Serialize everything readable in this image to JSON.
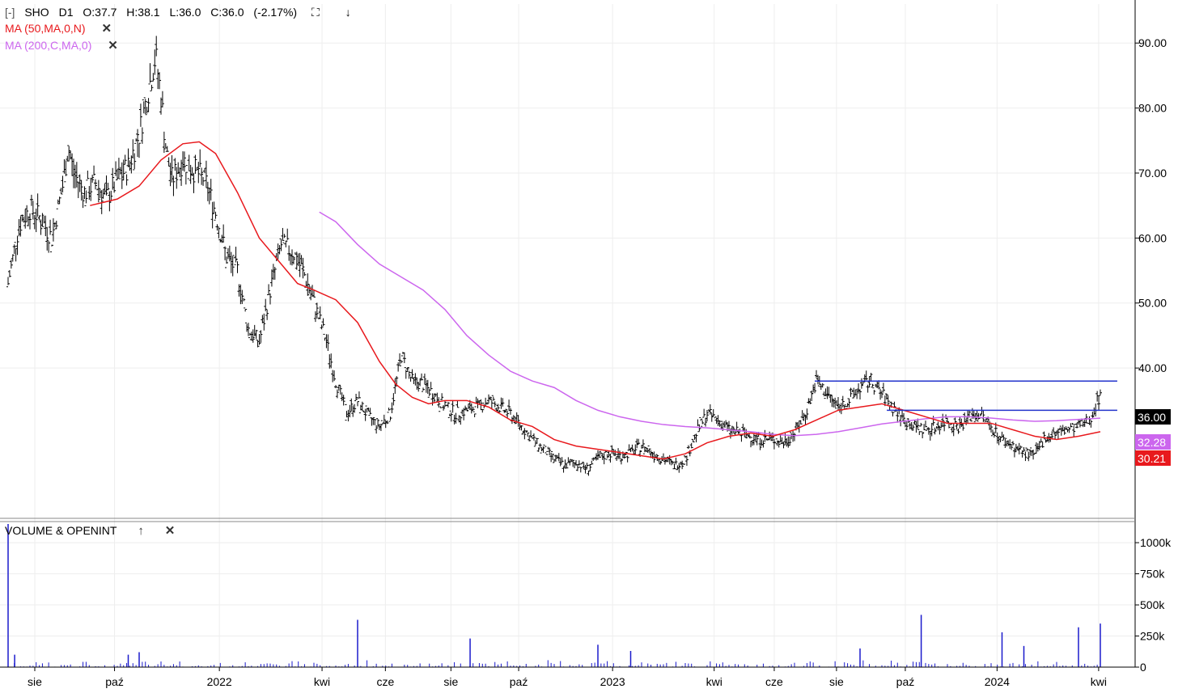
{
  "header": {
    "collapse": "[-]",
    "symbol": "SHO",
    "interval": "D1",
    "open": "O:37.7",
    "high": "H:38.1",
    "low": "L:36.0",
    "close": "C:36.0",
    "change": "(-2.17%)",
    "expand_icon": "expand-icon",
    "download_icon": "download-icon"
  },
  "indicators": {
    "ma50": {
      "label": "MA (50,MA,0,N)",
      "color": "#e8191d",
      "close": "✕"
    },
    "ma200": {
      "label": "MA (200,C,MA,0)",
      "color": "#cc66ee",
      "close": "✕"
    }
  },
  "volume_panel": {
    "label": "VOLUME & OPENINT",
    "up": "↑",
    "close": "✕"
  },
  "tags": {
    "last": {
      "text": "36.00",
      "color": "#000000"
    },
    "ma200": {
      "text": "32.28",
      "color": "#cc66ee"
    },
    "ma50": {
      "text": "30.21",
      "color": "#e8191d"
    }
  },
  "chart_data": {
    "type": "line",
    "price_axis": {
      "ticks": [
        "90.00",
        "80.00",
        "70.00",
        "60.00",
        "50.00",
        "40.00"
      ],
      "values": [
        90,
        80,
        70,
        60,
        50,
        40
      ],
      "ylim": [
        17,
        96
      ]
    },
    "volume_axis": {
      "ticks": [
        "1000k",
        "750k",
        "500k",
        "250k",
        "0"
      ],
      "values": [
        1000000,
        750000,
        500000,
        250000,
        0
      ],
      "ylim": [
        0,
        1150000
      ]
    },
    "x_ticks": [
      "sie",
      "paź",
      "2022",
      "kwi",
      "cze",
      "sie",
      "paź",
      "2023",
      "kwi",
      "cze",
      "sie",
      "paź",
      "2024",
      "kwi"
    ],
    "x_tick_pos": [
      0.0,
      0.073,
      0.169,
      0.263,
      0.321,
      0.381,
      0.443,
      0.529,
      0.622,
      0.677,
      0.734,
      0.797,
      0.881,
      0.974
    ],
    "price_close": [
      [
        0.0,
        53.0
      ],
      [
        0.01,
        62.0
      ],
      [
        0.02,
        64.5
      ],
      [
        0.03,
        63.0
      ],
      [
        0.04,
        60.0
      ],
      [
        0.05,
        68.0
      ],
      [
        0.055,
        74.0
      ],
      [
        0.06,
        70.0
      ],
      [
        0.07,
        67.0
      ],
      [
        0.08,
        68.5
      ],
      [
        0.09,
        66.0
      ],
      [
        0.1,
        69.0
      ],
      [
        0.11,
        71.0
      ],
      [
        0.12,
        76.0
      ],
      [
        0.13,
        84.0
      ],
      [
        0.135,
        88.0
      ],
      [
        0.14,
        82.0
      ],
      [
        0.145,
        73.0
      ],
      [
        0.15,
        69.0
      ],
      [
        0.16,
        72.0
      ],
      [
        0.17,
        70.5
      ],
      [
        0.18,
        69.0
      ],
      [
        0.19,
        64.0
      ],
      [
        0.2,
        57.0
      ],
      [
        0.21,
        55.0
      ],
      [
        0.22,
        46.0
      ],
      [
        0.23,
        44.0
      ],
      [
        0.24,
        52.0
      ],
      [
        0.25,
        59.0
      ],
      [
        0.26,
        58.0
      ],
      [
        0.27,
        55.0
      ],
      [
        0.28,
        50.0
      ],
      [
        0.29,
        45.0
      ],
      [
        0.3,
        38.0
      ],
      [
        0.31,
        33.0
      ],
      [
        0.32,
        35.0
      ],
      [
        0.33,
        32.5
      ],
      [
        0.34,
        31.0
      ],
      [
        0.35,
        33.0
      ],
      [
        0.36,
        42.0
      ],
      [
        0.37,
        38.0
      ],
      [
        0.38,
        37.5
      ],
      [
        0.39,
        36.0
      ],
      [
        0.4,
        34.0
      ],
      [
        0.41,
        33.0
      ],
      [
        0.42,
        33.5
      ],
      [
        0.43,
        34.0
      ],
      [
        0.44,
        35.0
      ],
      [
        0.45,
        34.0
      ],
      [
        0.46,
        33.0
      ],
      [
        0.47,
        31.0
      ],
      [
        0.48,
        29.0
      ],
      [
        0.49,
        27.5
      ],
      [
        0.5,
        26.0
      ],
      [
        0.51,
        25.0
      ],
      [
        0.52,
        25.5
      ],
      [
        0.53,
        24.5
      ],
      [
        0.54,
        26.0
      ],
      [
        0.55,
        27.0
      ],
      [
        0.56,
        26.5
      ],
      [
        0.57,
        27.0
      ],
      [
        0.58,
        28.0
      ],
      [
        0.59,
        27.0
      ],
      [
        0.6,
        26.0
      ],
      [
        0.61,
        25.0
      ],
      [
        0.62,
        26.0
      ],
      [
        0.63,
        30.0
      ],
      [
        0.64,
        33.0
      ],
      [
        0.65,
        32.0
      ],
      [
        0.66,
        30.5
      ],
      [
        0.67,
        30.0
      ],
      [
        0.68,
        29.5
      ],
      [
        0.69,
        29.0
      ],
      [
        0.7,
        29.0
      ],
      [
        0.71,
        28.5
      ],
      [
        0.72,
        30.0
      ],
      [
        0.73,
        33.0
      ],
      [
        0.74,
        38.0
      ],
      [
        0.75,
        36.0
      ],
      [
        0.76,
        34.0
      ],
      [
        0.77,
        35.0
      ],
      [
        0.78,
        37.0
      ],
      [
        0.79,
        38.0
      ],
      [
        0.8,
        36.0
      ],
      [
        0.81,
        34.0
      ],
      [
        0.82,
        32.0
      ],
      [
        0.83,
        31.0
      ],
      [
        0.84,
        30.5
      ],
      [
        0.85,
        31.0
      ],
      [
        0.86,
        32.0
      ],
      [
        0.87,
        31.0
      ],
      [
        0.88,
        32.5
      ],
      [
        0.89,
        33.0
      ],
      [
        0.9,
        31.0
      ],
      [
        0.91,
        29.0
      ],
      [
        0.92,
        28.0
      ],
      [
        0.93,
        27.0
      ],
      [
        0.94,
        26.5
      ],
      [
        0.95,
        29.5
      ],
      [
        0.96,
        30.0
      ],
      [
        0.97,
        30.5
      ],
      [
        0.98,
        31.0
      ],
      [
        0.99,
        32.0
      ],
      [
        1.0,
        36.0
      ]
    ],
    "ma50": [
      [
        0.075,
        65.0
      ],
      [
        0.1,
        66.0
      ],
      [
        0.12,
        68.0
      ],
      [
        0.14,
        72.0
      ],
      [
        0.16,
        74.5
      ],
      [
        0.175,
        74.8
      ],
      [
        0.19,
        73.0
      ],
      [
        0.21,
        67.0
      ],
      [
        0.23,
        60.0
      ],
      [
        0.25,
        56.0
      ],
      [
        0.265,
        53.0
      ],
      [
        0.28,
        52.0
      ],
      [
        0.3,
        50.5
      ],
      [
        0.32,
        47.0
      ],
      [
        0.34,
        41.0
      ],
      [
        0.355,
        37.5
      ],
      [
        0.37,
        35.5
      ],
      [
        0.385,
        34.5
      ],
      [
        0.4,
        35.0
      ],
      [
        0.42,
        35.0
      ],
      [
        0.44,
        34.0
      ],
      [
        0.46,
        32.0
      ],
      [
        0.48,
        31.0
      ],
      [
        0.5,
        29.0
      ],
      [
        0.52,
        28.0
      ],
      [
        0.54,
        27.5
      ],
      [
        0.56,
        27.0
      ],
      [
        0.58,
        26.5
      ],
      [
        0.6,
        26.0
      ],
      [
        0.62,
        26.8
      ],
      [
        0.64,
        28.5
      ],
      [
        0.66,
        29.5
      ],
      [
        0.68,
        30.0
      ],
      [
        0.7,
        29.5
      ],
      [
        0.72,
        30.5
      ],
      [
        0.74,
        32.0
      ],
      [
        0.76,
        33.5
      ],
      [
        0.78,
        34.0
      ],
      [
        0.8,
        34.5
      ],
      [
        0.82,
        33.5
      ],
      [
        0.84,
        32.5
      ],
      [
        0.86,
        31.5
      ],
      [
        0.88,
        31.5
      ],
      [
        0.9,
        31.5
      ],
      [
        0.92,
        30.5
      ],
      [
        0.94,
        29.5
      ],
      [
        0.96,
        29.0
      ],
      [
        0.98,
        29.5
      ],
      [
        1.0,
        30.2
      ]
    ],
    "ma200": [
      [
        0.285,
        64.0
      ],
      [
        0.3,
        62.5
      ],
      [
        0.32,
        59.0
      ],
      [
        0.34,
        56.0
      ],
      [
        0.36,
        54.0
      ],
      [
        0.38,
        52.0
      ],
      [
        0.4,
        49.0
      ],
      [
        0.42,
        45.0
      ],
      [
        0.44,
        42.0
      ],
      [
        0.46,
        39.5
      ],
      [
        0.48,
        38.0
      ],
      [
        0.5,
        37.0
      ],
      [
        0.52,
        35.0
      ],
      [
        0.54,
        33.5
      ],
      [
        0.56,
        32.5
      ],
      [
        0.58,
        31.8
      ],
      [
        0.6,
        31.3
      ],
      [
        0.62,
        31.0
      ],
      [
        0.64,
        30.8
      ],
      [
        0.66,
        30.5
      ],
      [
        0.68,
        30.2
      ],
      [
        0.7,
        29.8
      ],
      [
        0.72,
        29.6
      ],
      [
        0.74,
        29.8
      ],
      [
        0.76,
        30.2
      ],
      [
        0.78,
        30.8
      ],
      [
        0.8,
        31.4
      ],
      [
        0.82,
        31.8
      ],
      [
        0.84,
        32.2
      ],
      [
        0.86,
        32.5
      ],
      [
        0.88,
        32.5
      ],
      [
        0.9,
        32.3
      ],
      [
        0.92,
        32.0
      ],
      [
        0.94,
        31.8
      ],
      [
        0.96,
        31.9
      ],
      [
        0.98,
        32.1
      ],
      [
        1.0,
        32.28
      ]
    ],
    "hlines": [
      {
        "x0": 0.74,
        "x1": 1.017,
        "y": 38.0
      },
      {
        "x0": 0.806,
        "x1": 1.017,
        "y": 33.5
      }
    ],
    "volume_spikes": [
      [
        0.0,
        1150000
      ],
      [
        0.006,
        100000
      ],
      [
        0.11,
        100000
      ],
      [
        0.12,
        120000
      ],
      [
        0.32,
        380000
      ],
      [
        0.423,
        230000
      ],
      [
        0.54,
        180000
      ],
      [
        0.57,
        130000
      ],
      [
        0.78,
        150000
      ],
      [
        0.836,
        420000
      ],
      [
        0.91,
        280000
      ],
      [
        0.93,
        170000
      ],
      [
        0.98,
        320000
      ],
      [
        1.0,
        350000
      ]
    ]
  }
}
